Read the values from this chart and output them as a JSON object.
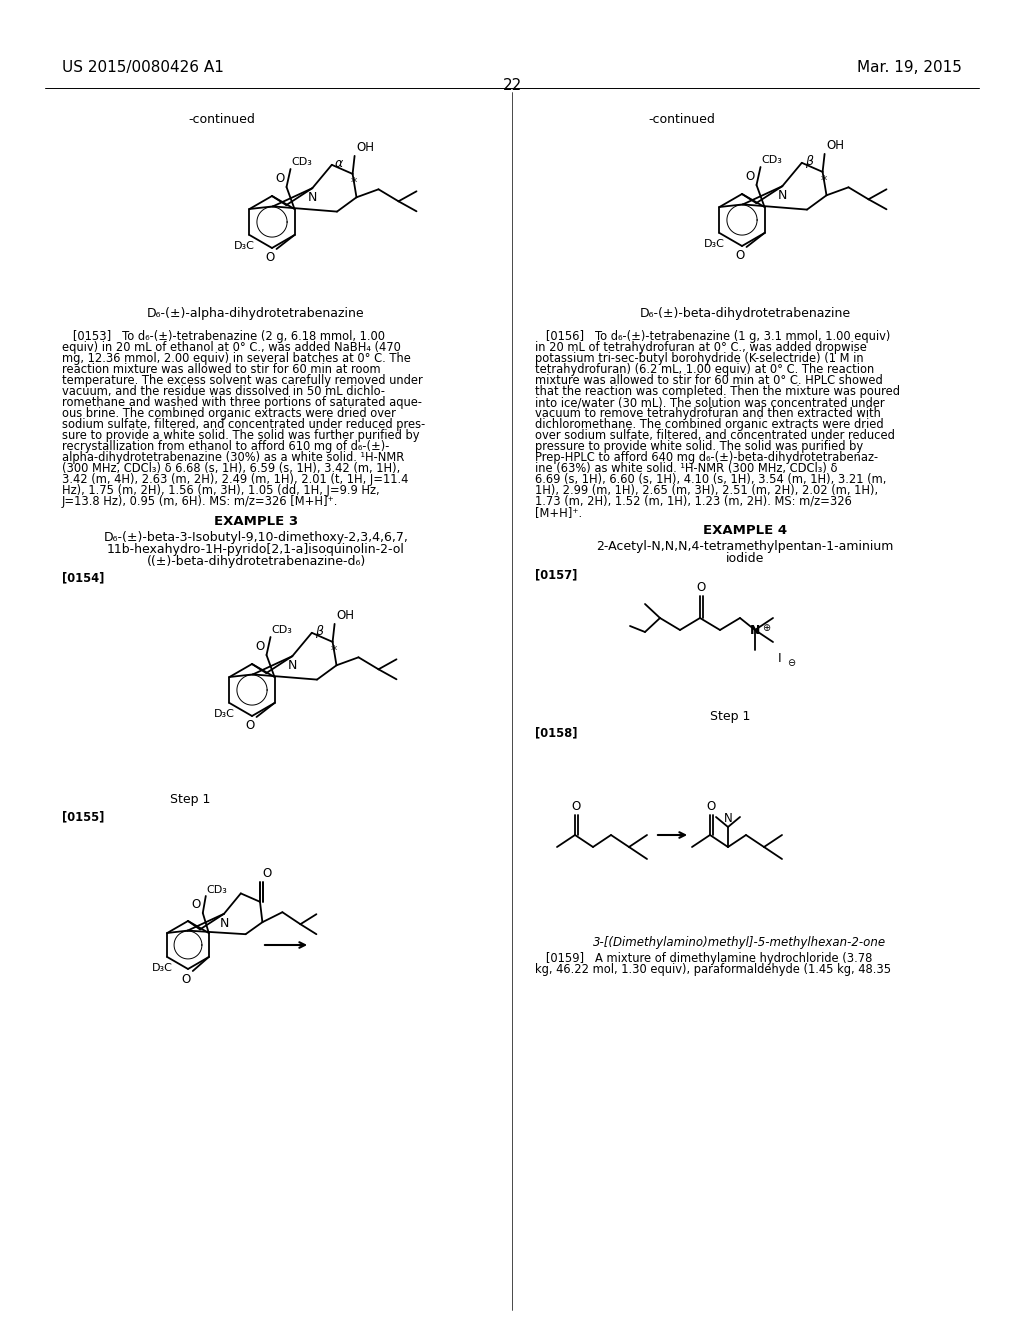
{
  "bg_color": "#ffffff",
  "header_left": "US 2015/0080426 A1",
  "header_right": "Mar. 19, 2015",
  "page_number": "22"
}
